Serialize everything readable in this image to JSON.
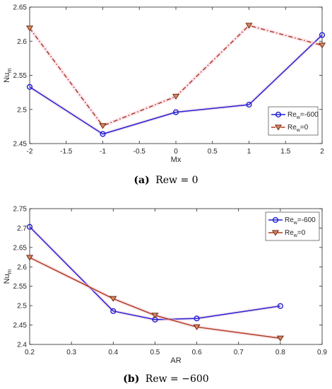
{
  "captions": [
    {
      "letter": "(a)",
      "text": "Rew = 0"
    },
    {
      "letter": "(b)",
      "text": "Rew = −600"
    }
  ],
  "chart_data": [
    {
      "type": "line",
      "xlabel": "Mx",
      "ylabel": {
        "base": "Nu",
        "sub": "m"
      },
      "xlim": [
        -2,
        2
      ],
      "ylim": [
        2.45,
        2.65
      ],
      "xticks": [
        -2,
        -1.5,
        -1,
        -0.5,
        0,
        0.5,
        1,
        1.5,
        2
      ],
      "xtick_labels": [
        "-2",
        "-1.5",
        "-1",
        "-0.5",
        "0",
        "0.5",
        "1",
        "1.5",
        "2"
      ],
      "yticks": [
        2.45,
        2.5,
        2.55,
        2.6,
        2.65
      ],
      "ytick_labels": [
        "2.45",
        "2.5",
        "2.55",
        "2.6",
        "2.65"
      ],
      "grid": false,
      "legend_position": "bottom-right",
      "series": [
        {
          "name": {
            "base": "Re",
            "sub": "w",
            "rest": "=-600"
          },
          "color": "#1f1fd6",
          "marker": "circle",
          "dash": "solid",
          "x": [
            -2,
            -1,
            0,
            1,
            2
          ],
          "y": [
            2.533,
            2.464,
            2.496,
            2.507,
            2.609
          ]
        },
        {
          "name": {
            "base": "Re",
            "sub": "w",
            "rest": "=0"
          },
          "color": "#b03a1c",
          "marker": "triangle-down",
          "dash": "dashdot",
          "x": [
            -2,
            -1,
            0,
            1,
            2
          ],
          "y": [
            2.619,
            2.476,
            2.519,
            2.623,
            2.594
          ]
        }
      ]
    },
    {
      "type": "line",
      "xlabel": "AR",
      "ylabel": {
        "base": "Nu",
        "sub": "m"
      },
      "xlim": [
        0.2,
        0.9
      ],
      "ylim": [
        2.4,
        2.75
      ],
      "xticks": [
        0.2,
        0.3,
        0.4,
        0.5,
        0.6,
        0.7,
        0.8,
        0.9
      ],
      "xtick_labels": [
        "0.2",
        "0.3",
        "0.4",
        "0.5",
        "0.6",
        "0.7",
        "0.8",
        "0.9"
      ],
      "yticks": [
        2.4,
        2.45,
        2.5,
        2.55,
        2.6,
        2.65,
        2.7,
        2.75
      ],
      "ytick_labels": [
        "2.4",
        "2.45",
        "2.5",
        "2.55",
        "2.6",
        "2.65",
        "2.7",
        "2.75"
      ],
      "grid": false,
      "legend_position": "top-right",
      "series": [
        {
          "name": {
            "base": "Re",
            "sub": "w",
            "rest": "=-600"
          },
          "color": "#1f1fd6",
          "marker": "circle",
          "dash": "solid",
          "x": [
            0.2,
            0.4,
            0.5,
            0.6,
            0.8
          ],
          "y": [
            2.703,
            2.486,
            2.464,
            2.467,
            2.499
          ]
        },
        {
          "name": {
            "base": "Re",
            "sub": "w",
            "rest": "=0"
          },
          "color": "#b03a1c",
          "marker": "triangle-down",
          "dash": "solid",
          "x": [
            0.2,
            0.4,
            0.5,
            0.6,
            0.8
          ],
          "y": [
            2.624,
            2.518,
            2.475,
            2.445,
            2.416
          ]
        }
      ]
    }
  ]
}
